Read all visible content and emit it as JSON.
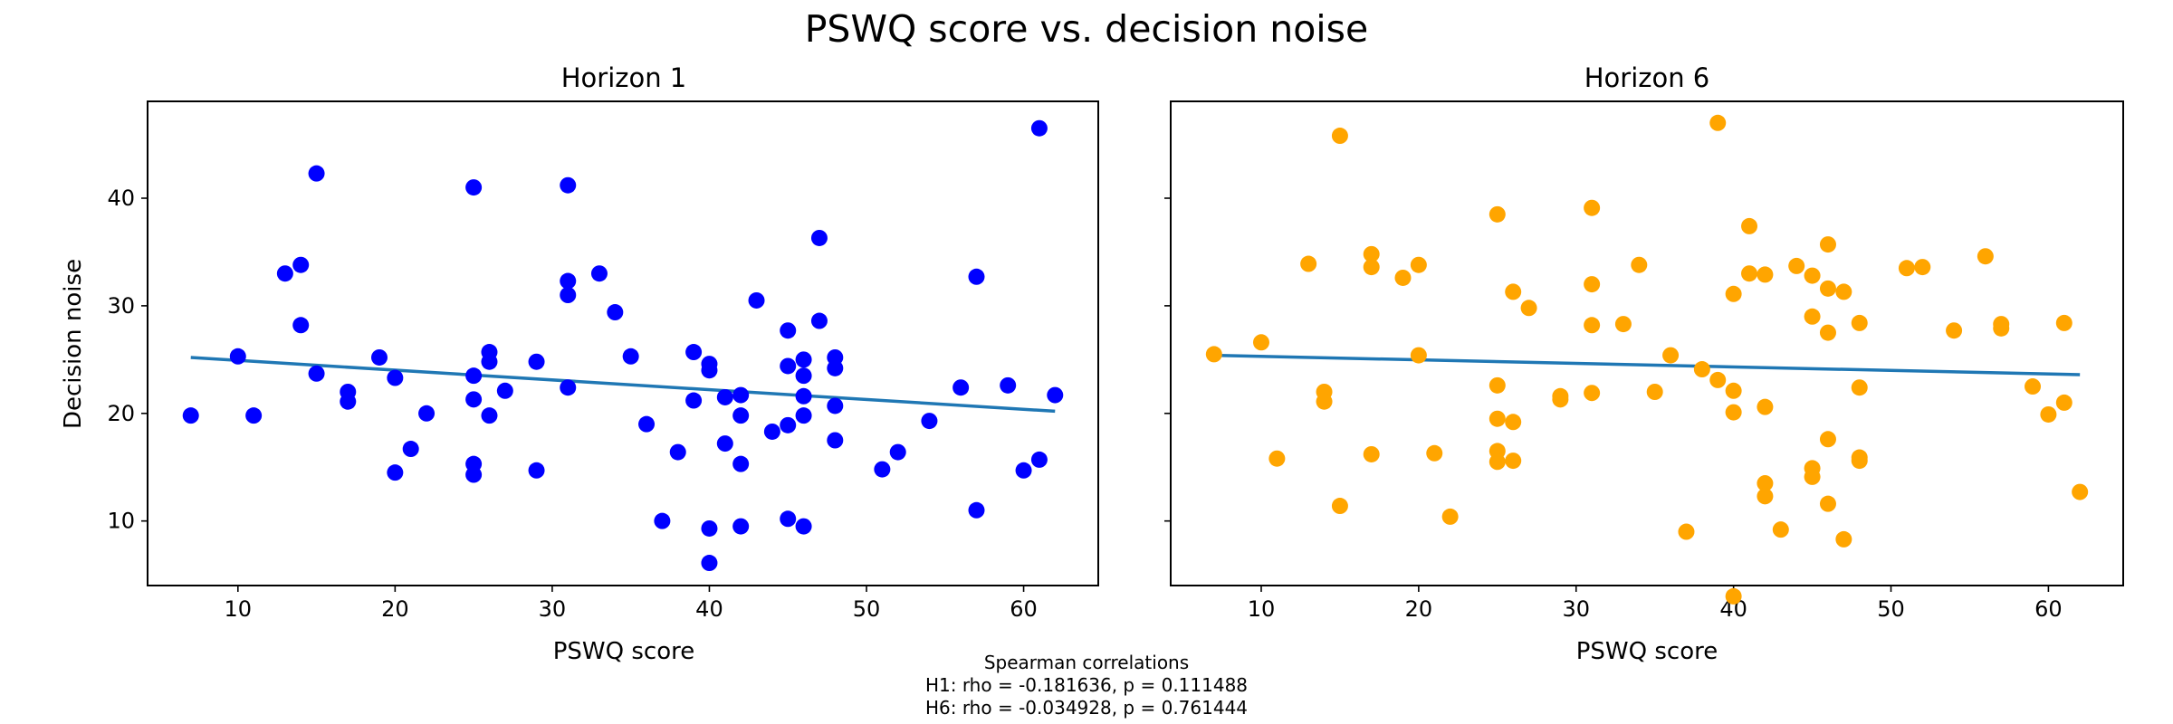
{
  "figure": {
    "title": "PSWQ score vs. decision noise",
    "footnote": {
      "heading": "Spearman correlations",
      "lines": [
        "H1: rho = -0.181636, p = 0.111488",
        "H6: rho = -0.034928, p = 0.761444"
      ]
    }
  },
  "chart_data": [
    {
      "type": "scatter",
      "title": "Horizon 1",
      "xlabel": "PSWQ score",
      "ylabel": "Decision noise",
      "xlim": [
        4.25,
        64.75
      ],
      "ylim": [
        4.0,
        49.0
      ],
      "xticks": [
        10,
        20,
        30,
        40,
        50,
        60
      ],
      "yticks": [
        10,
        20,
        30,
        40
      ],
      "grid": false,
      "legend": "none",
      "point_color": "#0000ff",
      "line_color": "#1f77b4",
      "trendline": {
        "x": [
          7,
          62
        ],
        "y": [
          25.2,
          20.2
        ]
      },
      "points": [
        [
          7,
          19.8
        ],
        [
          10,
          25.3
        ],
        [
          11,
          19.8
        ],
        [
          13,
          33.0
        ],
        [
          14,
          33.8
        ],
        [
          14,
          28.2
        ],
        [
          15,
          42.3
        ],
        [
          15,
          23.7
        ],
        [
          17,
          22.0
        ],
        [
          17,
          21.1
        ],
        [
          19,
          25.2
        ],
        [
          20,
          23.3
        ],
        [
          20,
          14.5
        ],
        [
          21,
          16.7
        ],
        [
          22,
          20.0
        ],
        [
          25,
          41.0
        ],
        [
          25,
          23.5
        ],
        [
          25,
          21.3
        ],
        [
          25,
          15.3
        ],
        [
          25,
          14.3
        ],
        [
          26,
          25.7
        ],
        [
          26,
          24.8
        ],
        [
          26,
          19.8
        ],
        [
          27,
          22.1
        ],
        [
          29,
          24.8
        ],
        [
          29,
          14.7
        ],
        [
          31,
          41.2
        ],
        [
          31,
          32.3
        ],
        [
          31,
          31.0
        ],
        [
          31,
          22.4
        ],
        [
          33,
          33.0
        ],
        [
          34,
          29.4
        ],
        [
          35,
          25.3
        ],
        [
          36,
          19.0
        ],
        [
          37,
          10.0
        ],
        [
          38,
          16.4
        ],
        [
          39,
          25.7
        ],
        [
          39,
          21.2
        ],
        [
          40,
          24.6
        ],
        [
          40,
          24.0
        ],
        [
          40,
          9.3
        ],
        [
          40,
          6.1
        ],
        [
          41,
          21.5
        ],
        [
          41,
          17.2
        ],
        [
          42,
          21.7
        ],
        [
          42,
          19.8
        ],
        [
          42,
          15.3
        ],
        [
          42,
          9.5
        ],
        [
          43,
          30.5
        ],
        [
          44,
          18.3
        ],
        [
          45,
          27.7
        ],
        [
          45,
          24.4
        ],
        [
          45,
          18.9
        ],
        [
          45,
          10.2
        ],
        [
          46,
          25.0
        ],
        [
          46,
          23.5
        ],
        [
          46,
          21.6
        ],
        [
          46,
          19.8
        ],
        [
          46,
          9.5
        ],
        [
          47,
          36.3
        ],
        [
          47,
          28.6
        ],
        [
          48,
          25.2
        ],
        [
          48,
          24.2
        ],
        [
          48,
          20.7
        ],
        [
          48,
          17.5
        ],
        [
          51,
          14.8
        ],
        [
          52,
          16.4
        ],
        [
          54,
          19.3
        ],
        [
          56,
          22.4
        ],
        [
          57,
          32.7
        ],
        [
          57,
          11.0
        ],
        [
          59,
          22.6
        ],
        [
          60,
          14.7
        ],
        [
          61,
          46.5
        ],
        [
          61,
          15.7
        ],
        [
          62,
          21.7
        ]
      ]
    },
    {
      "type": "scatter",
      "title": "Horizon 6",
      "xlabel": "PSWQ score",
      "ylabel": "",
      "xlim": [
        4.25,
        64.75
      ],
      "ylim": [
        4.0,
        49.0
      ],
      "xticks": [
        10,
        20,
        30,
        40,
        50,
        60
      ],
      "yticks": [
        10,
        20,
        30,
        40
      ],
      "ytick_labels_shown": false,
      "grid": false,
      "legend": "none",
      "point_color": "#ffa500",
      "line_color": "#1f77b4",
      "trendline": {
        "x": [
          7,
          62
        ],
        "y": [
          25.4,
          23.6
        ]
      },
      "points": [
        [
          7,
          25.5
        ],
        [
          10,
          26.6
        ],
        [
          11,
          15.8
        ],
        [
          13,
          33.9
        ],
        [
          14,
          22.0
        ],
        [
          14,
          21.1
        ],
        [
          15,
          45.8
        ],
        [
          15,
          11.4
        ],
        [
          17,
          34.8
        ],
        [
          17,
          33.6
        ],
        [
          17,
          16.2
        ],
        [
          19,
          32.6
        ],
        [
          20,
          33.8
        ],
        [
          20,
          25.4
        ],
        [
          21,
          16.3
        ],
        [
          22,
          10.4
        ],
        [
          25,
          38.5
        ],
        [
          25,
          22.6
        ],
        [
          25,
          19.5
        ],
        [
          25,
          16.5
        ],
        [
          25,
          15.5
        ],
        [
          26,
          31.3
        ],
        [
          26,
          19.2
        ],
        [
          26,
          15.6
        ],
        [
          27,
          29.8
        ],
        [
          29,
          21.6
        ],
        [
          29,
          21.3
        ],
        [
          31,
          39.1
        ],
        [
          31,
          32.0
        ],
        [
          31,
          28.2
        ],
        [
          31,
          21.9
        ],
        [
          33,
          28.3
        ],
        [
          34,
          33.8
        ],
        [
          35,
          22.0
        ],
        [
          36,
          25.4
        ],
        [
          37,
          9.0
        ],
        [
          38,
          24.1
        ],
        [
          39,
          47.0
        ],
        [
          39,
          23.1
        ],
        [
          40,
          31.1
        ],
        [
          40,
          22.1
        ],
        [
          40,
          20.1
        ],
        [
          40,
          3.0
        ],
        [
          41,
          37.4
        ],
        [
          41,
          33.0
        ],
        [
          42,
          32.9
        ],
        [
          42,
          20.6
        ],
        [
          42,
          13.5
        ],
        [
          42,
          12.3
        ],
        [
          43,
          9.2
        ],
        [
          44,
          33.7
        ],
        [
          45,
          32.8
        ],
        [
          45,
          29.0
        ],
        [
          45,
          14.9
        ],
        [
          45,
          14.1
        ],
        [
          46,
          35.7
        ],
        [
          46,
          31.6
        ],
        [
          46,
          27.5
        ],
        [
          46,
          17.6
        ],
        [
          46,
          11.6
        ],
        [
          47,
          31.3
        ],
        [
          47,
          8.3
        ],
        [
          48,
          28.4
        ],
        [
          48,
          22.4
        ],
        [
          48,
          15.9
        ],
        [
          48,
          15.6
        ],
        [
          51,
          33.5
        ],
        [
          52,
          33.6
        ],
        [
          54,
          27.7
        ],
        [
          56,
          34.6
        ],
        [
          57,
          28.3
        ],
        [
          57,
          27.9
        ],
        [
          59,
          22.5
        ],
        [
          60,
          19.9
        ],
        [
          61,
          28.4
        ],
        [
          61,
          21.0
        ],
        [
          62,
          12.7
        ]
      ]
    }
  ]
}
